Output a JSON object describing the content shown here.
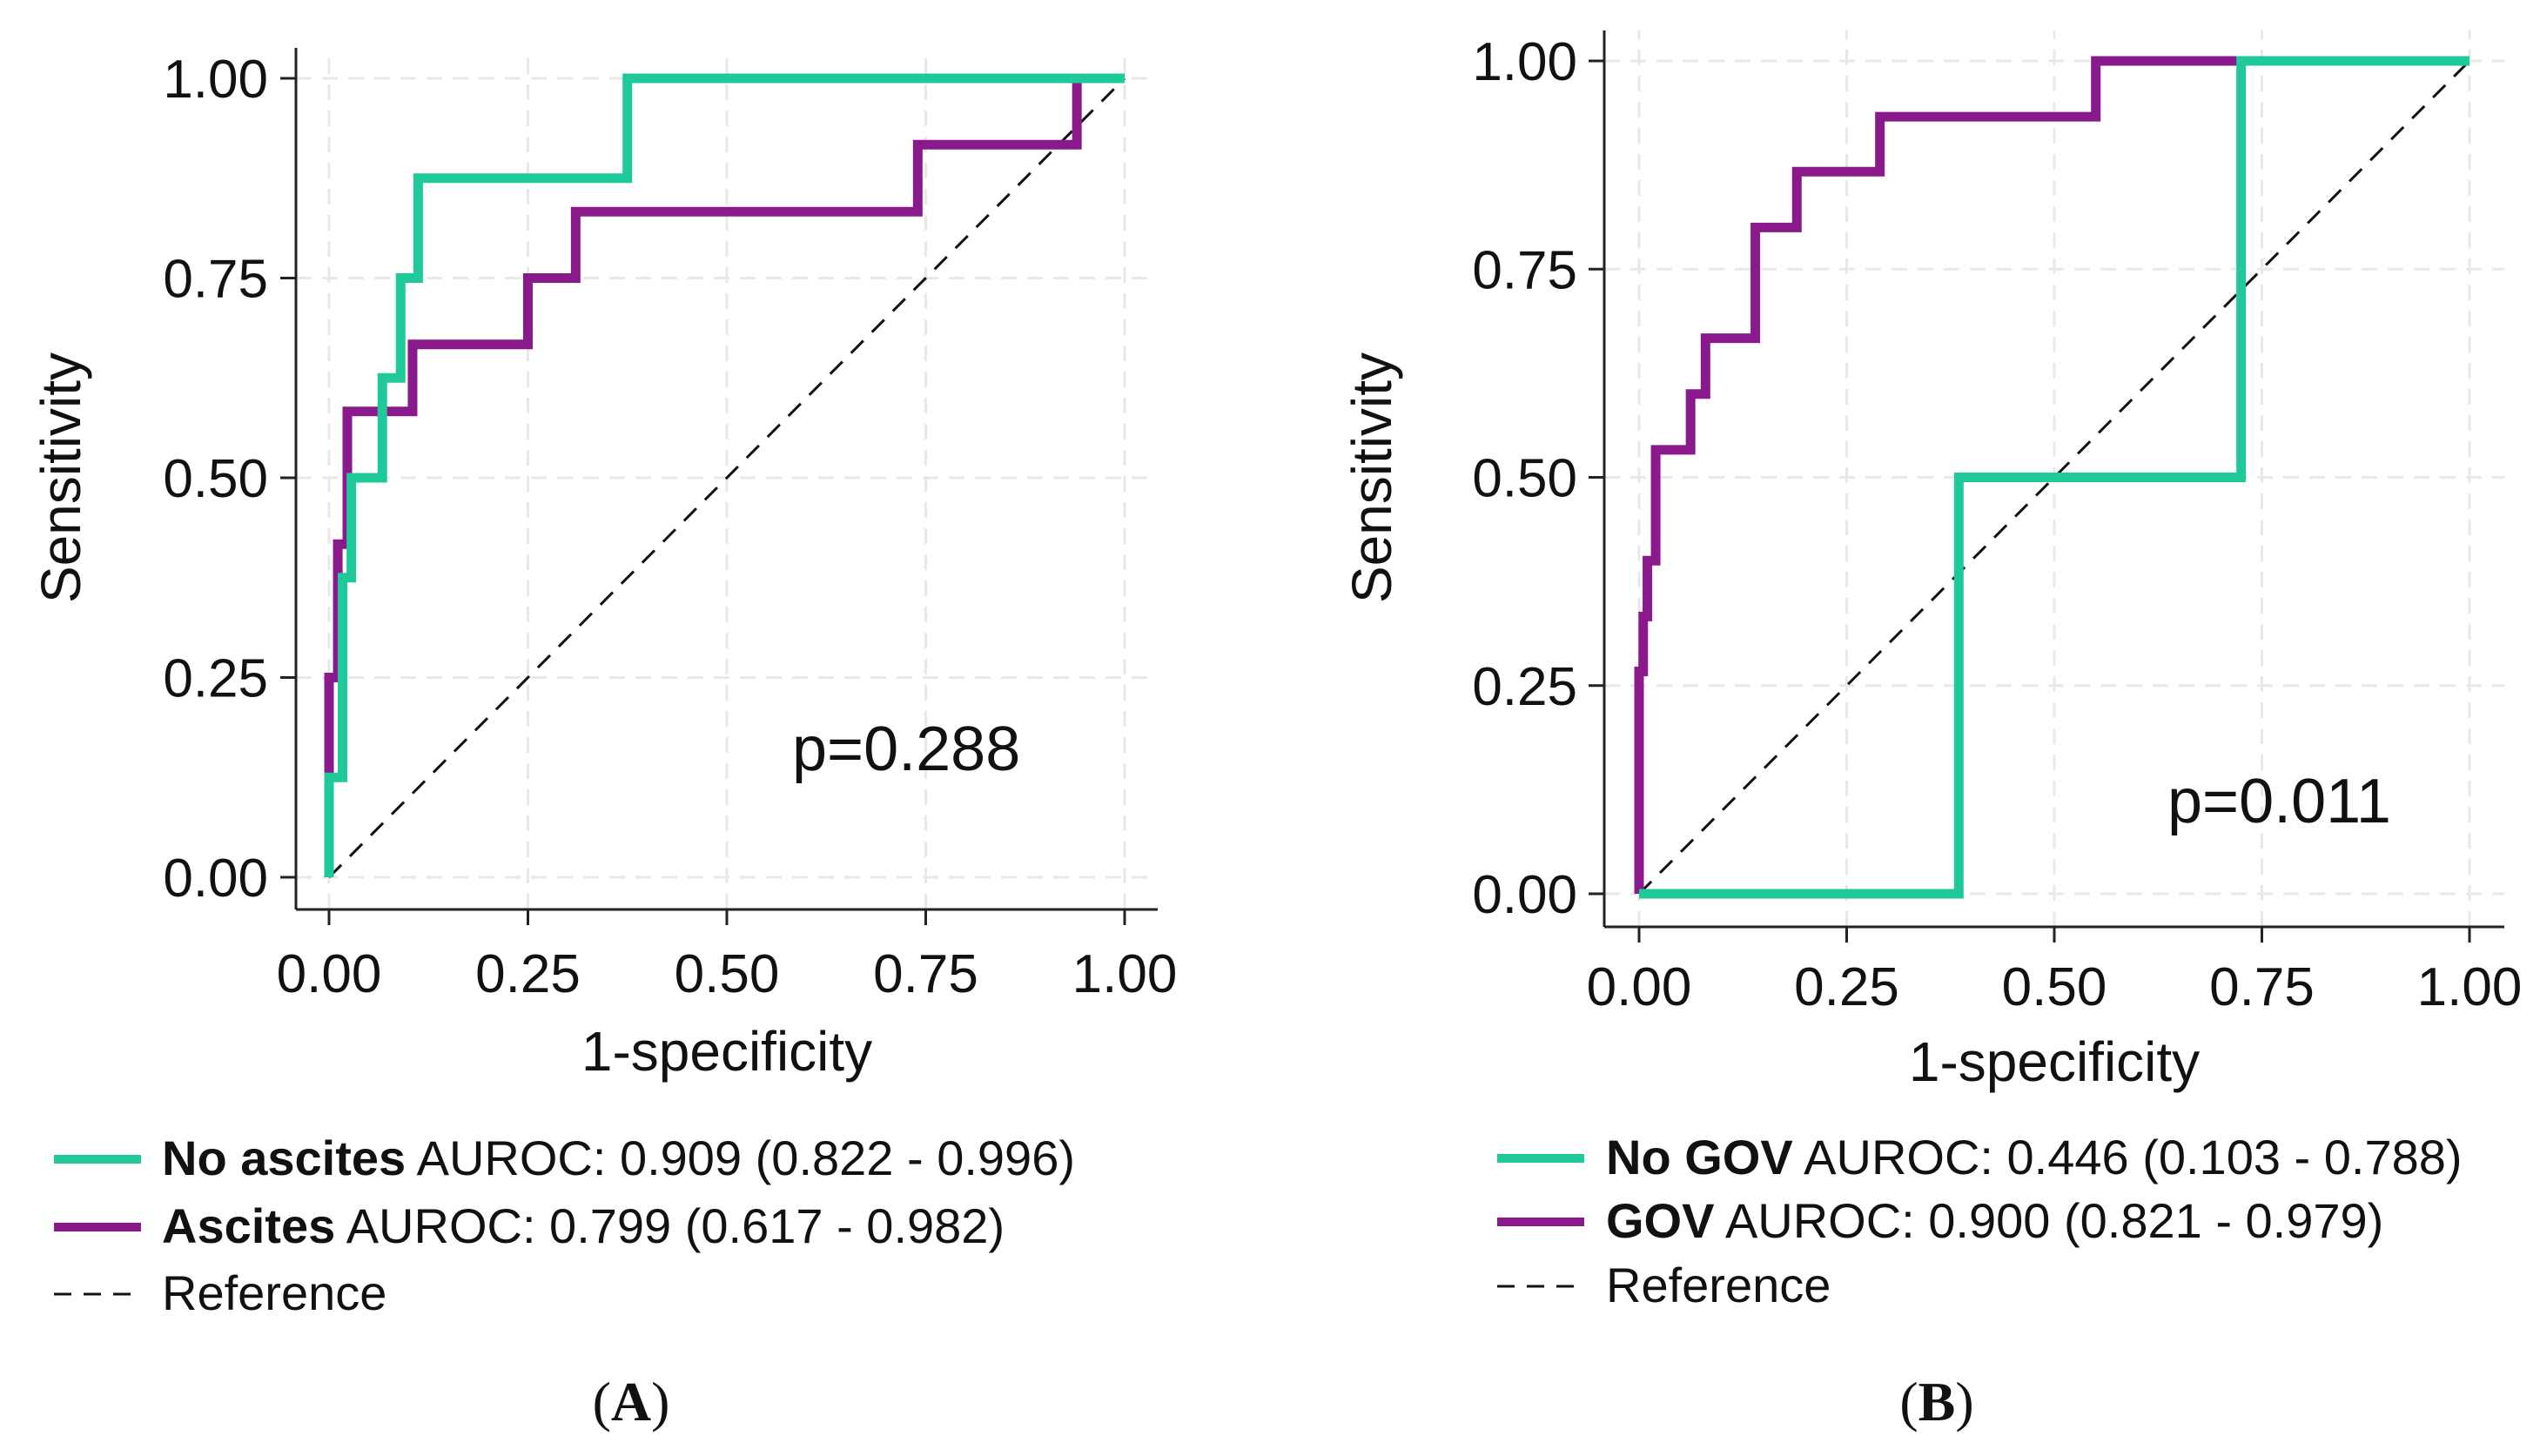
{
  "chart_data": [
    {
      "type": "line",
      "panel_label": "A",
      "xlabel": "1-specificity",
      "ylabel": "Sensitivity",
      "xlim": [
        0,
        1
      ],
      "ylim": [
        0,
        1
      ],
      "xticks": [
        "0.00",
        "0.25",
        "0.50",
        "0.75",
        "1.00"
      ],
      "yticks": [
        "0.00",
        "0.25",
        "0.50",
        "0.75",
        "1.00"
      ],
      "grid": true,
      "annotation": "p=0.288",
      "series": [
        {
          "name": "No ascites",
          "color": "#1fc99a",
          "auroc_text": "AUROC: 0.909 (0.822 - 0.996)",
          "x": [
            0,
            0,
            0.017,
            0.017,
            0.028,
            0.028,
            0.045,
            0.045,
            0.067,
            0.067,
            0.09,
            0.09,
            0.112,
            0.112,
            0.375,
            0.375,
            1
          ],
          "y": [
            0,
            0.125,
            0.125,
            0.375,
            0.375,
            0.5,
            0.5,
            0.5,
            0.5,
            0.625,
            0.625,
            0.75,
            0.75,
            0.875,
            0.875,
            1,
            1
          ]
        },
        {
          "name": "Ascites",
          "color": "#8a1a8c",
          "auroc_text": "AUROC: 0.799 (0.617 - 0.982)",
          "x": [
            0,
            0,
            0.011,
            0.011,
            0.023,
            0.023,
            0.105,
            0.105,
            0.25,
            0.25,
            0.31,
            0.31,
            0.74,
            0.74,
            0.94,
            0.94,
            1
          ],
          "y": [
            0,
            0.25,
            0.25,
            0.417,
            0.417,
            0.583,
            0.583,
            0.667,
            0.667,
            0.75,
            0.75,
            0.833,
            0.833,
            0.917,
            0.917,
            1,
            1
          ]
        },
        {
          "name": "Reference",
          "color": "#111111",
          "x": [
            0,
            1
          ],
          "y": [
            0,
            1
          ]
        }
      ]
    },
    {
      "type": "line",
      "panel_label": "B",
      "xlabel": "1-specificity",
      "ylabel": "Sensitivity",
      "xlim": [
        0,
        1
      ],
      "ylim": [
        0,
        1
      ],
      "xticks": [
        "0.00",
        "0.25",
        "0.50",
        "0.75",
        "1.00"
      ],
      "yticks": [
        "0.00",
        "0.25",
        "0.50",
        "0.75",
        "1.00"
      ],
      "grid": true,
      "annotation": "p=0.011",
      "series": [
        {
          "name": "No GOV",
          "color": "#1fc99a",
          "auroc_text": "AUROC: 0.446 (0.103 - 0.788)",
          "x": [
            0,
            0.385,
            0.385,
            0.725,
            0.725,
            1
          ],
          "y": [
            0,
            0,
            0.5,
            0.5,
            1,
            1
          ]
        },
        {
          "name": "GOV",
          "color": "#8a1a8c",
          "auroc_text": "AUROC: 0.900 (0.821 - 0.979)",
          "x": [
            0,
            0,
            0.005,
            0.005,
            0.01,
            0.01,
            0.02,
            0.02,
            0.062,
            0.062,
            0.08,
            0.08,
            0.14,
            0.14,
            0.19,
            0.19,
            0.29,
            0.29,
            0.55,
            0.55,
            1
          ],
          "y": [
            0,
            0.267,
            0.267,
            0.333,
            0.333,
            0.4,
            0.4,
            0.533,
            0.533,
            0.6,
            0.6,
            0.667,
            0.667,
            0.8,
            0.8,
            0.867,
            0.867,
            0.933,
            0.933,
            1,
            1
          ]
        },
        {
          "name": "Reference",
          "color": "#111111",
          "x": [
            0,
            1
          ],
          "y": [
            0,
            1
          ]
        }
      ]
    }
  ]
}
